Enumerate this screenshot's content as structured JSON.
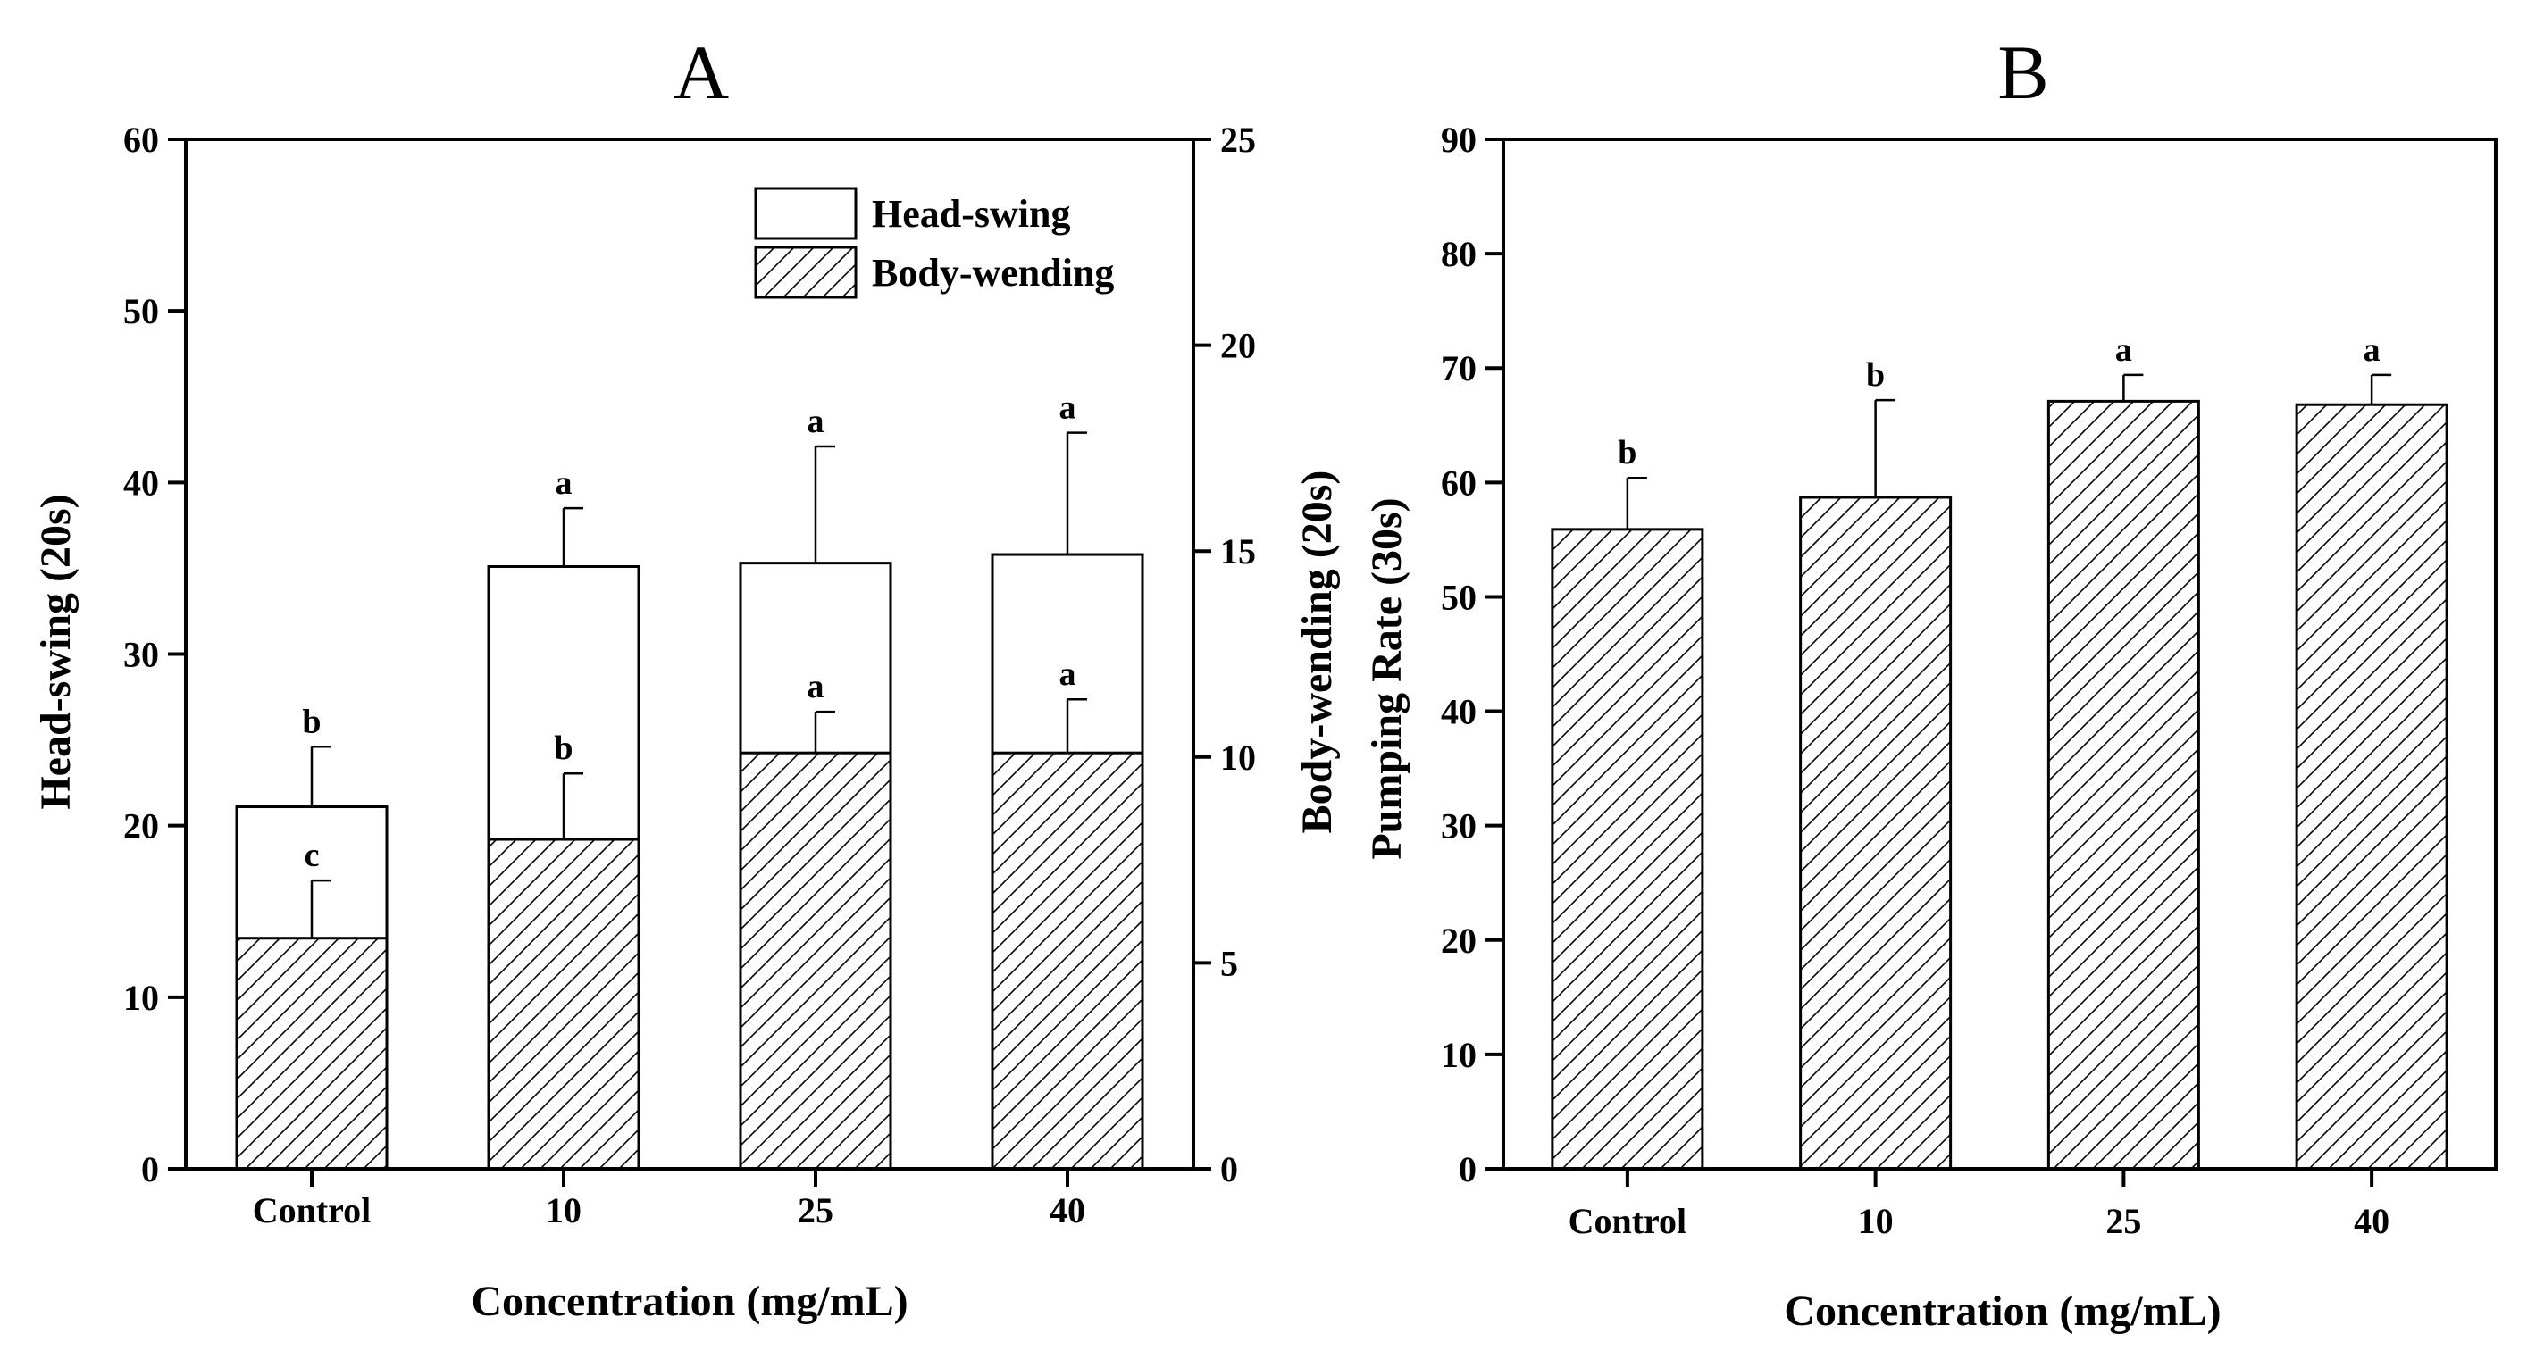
{
  "chart_data": [
    {
      "panel": "A",
      "type": "bar",
      "title": "A",
      "xlabel": "Concentration (mg/mL)",
      "ylabel": "Head-swing (20s)",
      "ylabel_right": "Body-wending (20s)",
      "categories": [
        "Control",
        "10",
        "25",
        "40"
      ],
      "ylim": [
        0,
        60
      ],
      "yticks": [
        0,
        10,
        20,
        30,
        40,
        50,
        60
      ],
      "ylim_right": [
        0,
        25
      ],
      "yticks_right": [
        0,
        5,
        10,
        15,
        20,
        25
      ],
      "series": [
        {
          "name": "Head-swing",
          "axis": "left",
          "fill": "plain",
          "values": [
            21.1,
            35.1,
            35.3,
            35.8
          ],
          "errors": [
            3.5,
            3.4,
            6.8,
            7.1
          ],
          "labels": [
            "b",
            "a",
            "a",
            "a"
          ]
        },
        {
          "name": "Body-wending",
          "axis": "right",
          "fill": "hatch",
          "values": [
            5.6,
            8.0,
            10.1,
            10.1
          ],
          "errors": [
            1.4,
            1.6,
            1.0,
            1.3
          ],
          "labels": [
            "c",
            "b",
            "a",
            "a"
          ]
        }
      ],
      "legend": {
        "position": "top-right",
        "entries": [
          "Head-swing",
          "Body-wending"
        ]
      }
    },
    {
      "panel": "B",
      "type": "bar",
      "title": "B",
      "xlabel": "Concentration (mg/mL)",
      "ylabel": "Pumping Rate (30s)",
      "categories": [
        "Control",
        "10",
        "25",
        "40"
      ],
      "ylim": [
        0,
        90
      ],
      "yticks": [
        0,
        10,
        20,
        30,
        40,
        50,
        60,
        70,
        80,
        90
      ],
      "series": [
        {
          "name": "Pumping Rate",
          "fill": "hatch",
          "values": [
            55.9,
            58.7,
            67.1,
            66.8
          ],
          "errors": [
            4.5,
            8.5,
            2.3,
            2.6
          ],
          "labels": [
            "b",
            "b",
            "a",
            "a"
          ]
        }
      ]
    }
  ]
}
